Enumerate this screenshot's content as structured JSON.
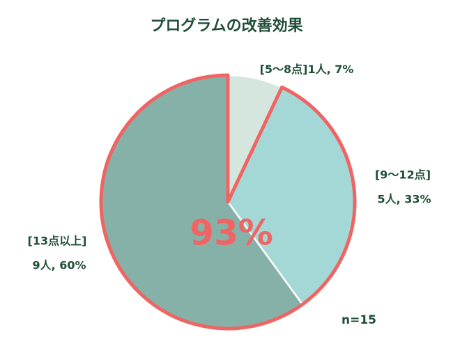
{
  "chart_data": {
    "type": "pie",
    "title": "プログラムの改善効果",
    "categories": [
      "[5〜8点]",
      "[9〜12点]",
      "[13点以上]"
    ],
    "values": [
      7,
      33,
      60
    ],
    "value_labels": [
      "1人, 7%",
      "5人, 33%",
      "9人, 60%"
    ],
    "colors": [
      "#d5e6de",
      "#a3d8d6",
      "#86b1a8"
    ],
    "highlight": {
      "slices": [
        1,
        2
      ],
      "color": "#f06464",
      "label": "93%"
    },
    "note": "n=15"
  }
}
